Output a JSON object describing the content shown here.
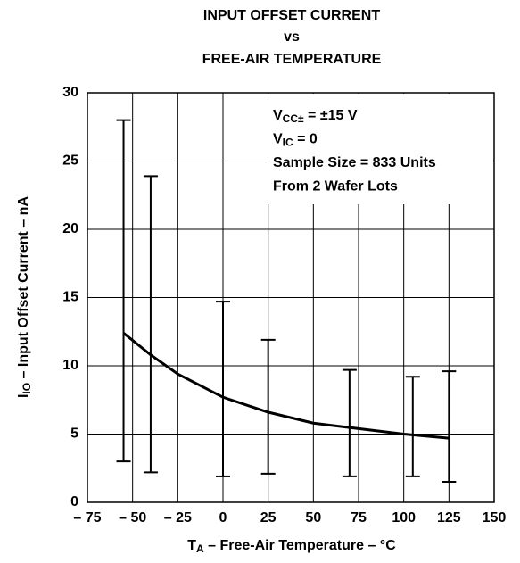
{
  "chart_data": {
    "type": "line",
    "title": [
      "INPUT OFFSET CURRENT",
      "vs",
      "FREE-AIR TEMPERATURE"
    ],
    "x_label": {
      "main": "T",
      "sub": "A",
      "rest": " – Free-Air Temperature – °C"
    },
    "y_label": {
      "main": "I",
      "sub": "IO",
      "rest": " – Input Offset Current – nA"
    },
    "annotations": [
      {
        "main": "V",
        "sub": "CC±",
        "rest": " = ±15 V"
      },
      {
        "main": "V",
        "sub": "IC",
        "rest": " = 0"
      },
      {
        "main": "Sample Size = 833 Units"
      },
      {
        "main": "From 2 Wafer Lots"
      }
    ],
    "xlim": [
      -75,
      150
    ],
    "xticks": [
      {
        "value": -75,
        "label": "– 75"
      },
      {
        "value": -50,
        "label": "– 50"
      },
      {
        "value": -25,
        "label": "– 25"
      },
      0,
      25,
      50,
      75,
      100,
      125,
      150
    ],
    "ylim": [
      0,
      30
    ],
    "yticks": [
      0,
      5,
      10,
      15,
      20,
      25,
      30
    ],
    "grid": true,
    "color": "#000000",
    "curve": {
      "x": [
        -55,
        -40,
        -25,
        0,
        25,
        50,
        75,
        100,
        125
      ],
      "values": [
        12.4,
        10.8,
        9.4,
        7.7,
        6.6,
        5.8,
        5.4,
        5.0,
        4.7
      ]
    },
    "range_bars": {
      "x": [
        -55,
        -40,
        0,
        25,
        70,
        105,
        125
      ],
      "low": [
        3.0,
        2.2,
        1.9,
        2.1,
        1.9,
        1.9,
        1.5
      ],
      "high": [
        28.0,
        23.9,
        14.7,
        11.9,
        9.7,
        9.2,
        9.6
      ]
    }
  }
}
